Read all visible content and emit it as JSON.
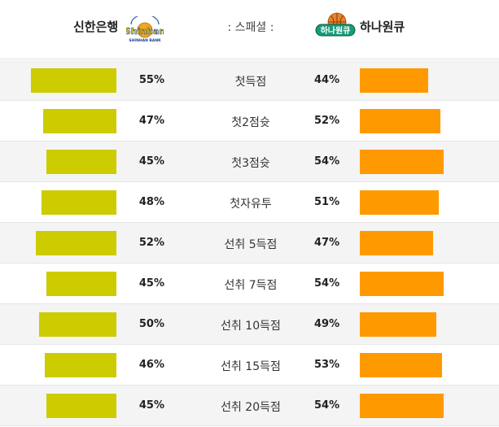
{
  "header": {
    "left_team": "신한은행",
    "right_team": "하나원큐",
    "special_label": ": 스패셜 :",
    "left_logo_text": "Shinhan",
    "left_logo_sub": "SHINHAN BANK",
    "right_logo_text": "하나원큐"
  },
  "colors": {
    "left_bar": "#cccc00",
    "right_bar": "#ff9900"
  },
  "rows": [
    {
      "label": "첫득점",
      "left_text": "55%",
      "right_text": "44%",
      "left_value": 55,
      "right_value": 44
    },
    {
      "label": "첫2점슛",
      "left_text": "47%",
      "right_text": "52%",
      "left_value": 47,
      "right_value": 52
    },
    {
      "label": "첫3점슛",
      "left_text": "45%",
      "right_text": "54%",
      "left_value": 45,
      "right_value": 54
    },
    {
      "label": "첫자유투",
      "left_text": "48%",
      "right_text": "51%",
      "left_value": 48,
      "right_value": 51
    },
    {
      "label": "선취 5득점",
      "left_text": "52%",
      "right_text": "47%",
      "left_value": 52,
      "right_value": 47
    },
    {
      "label": "선취 7득점",
      "left_text": "45%",
      "right_text": "54%",
      "left_value": 45,
      "right_value": 54
    },
    {
      "label": "선취 10득점",
      "left_text": "50%",
      "right_text": "49%",
      "left_value": 50,
      "right_value": 49
    },
    {
      "label": "선취 15득점",
      "left_text": "46%",
      "right_text": "53%",
      "left_value": 46,
      "right_value": 53
    },
    {
      "label": "선취 20득점",
      "left_text": "45%",
      "right_text": "54%",
      "left_value": 45,
      "right_value": 54
    }
  ]
}
